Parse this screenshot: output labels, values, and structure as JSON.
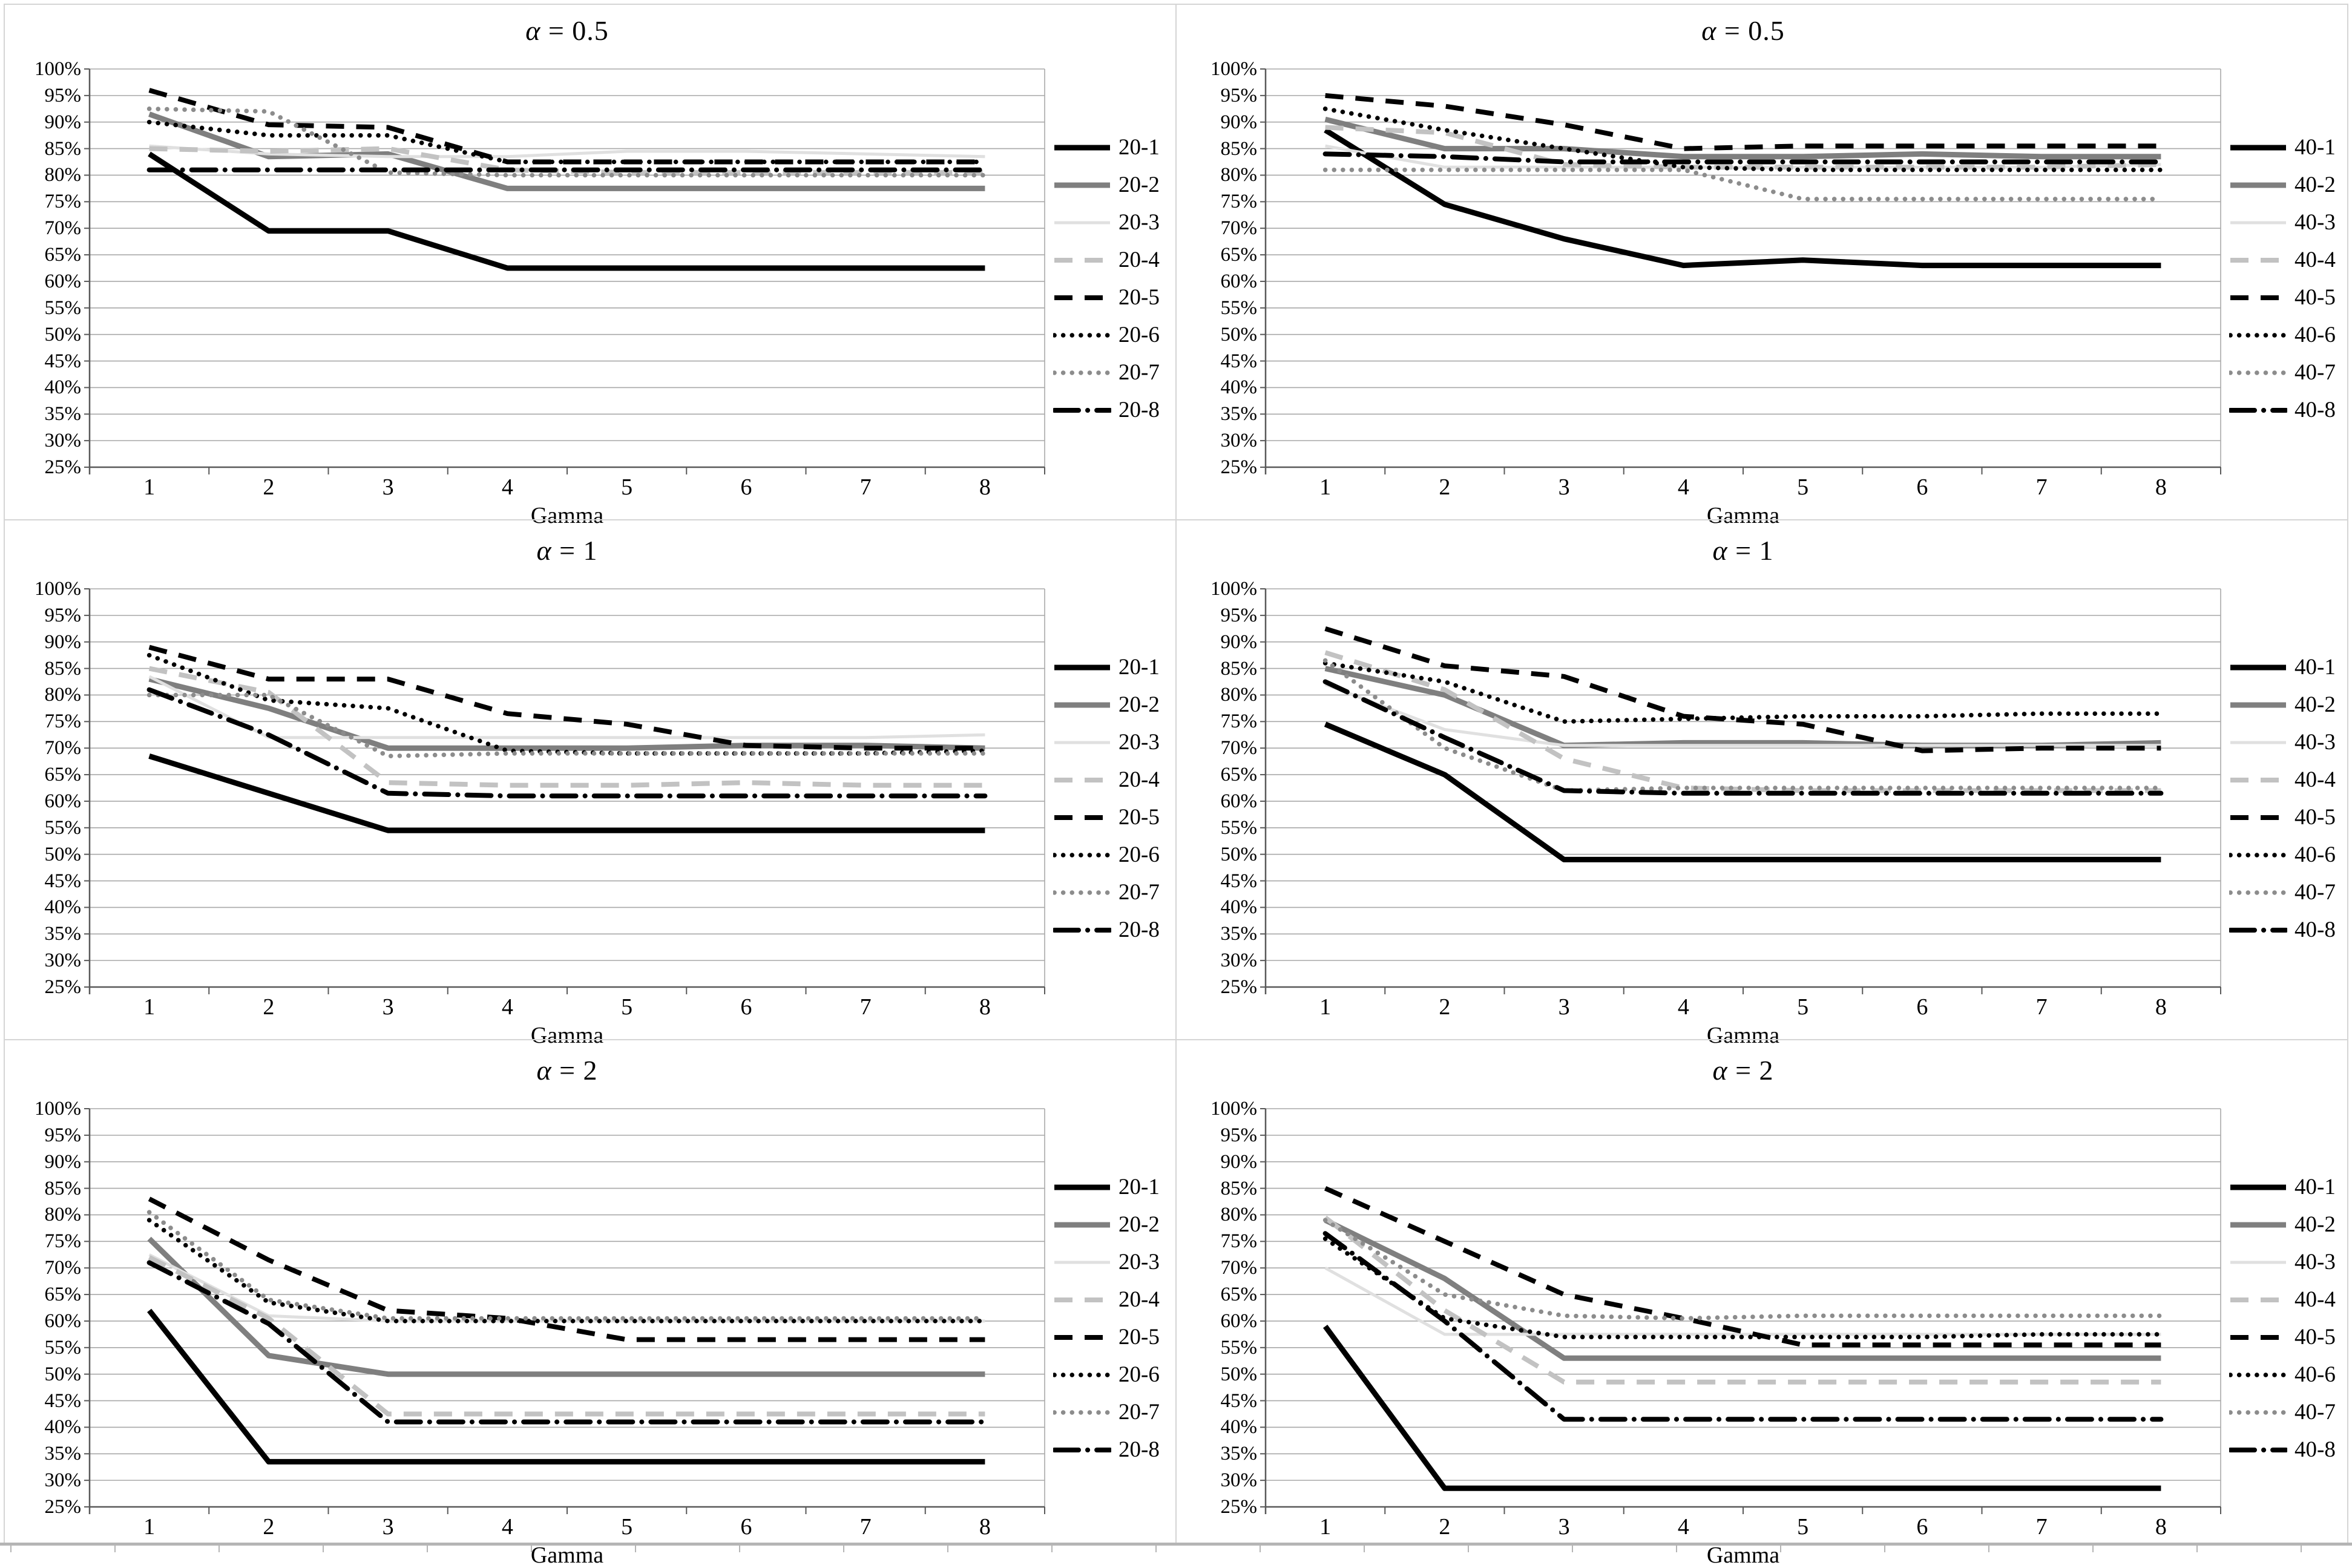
{
  "figure": {
    "x_axis_label": "Gamma",
    "x_tick_labels": [
      "1",
      "2",
      "3",
      "4",
      "5",
      "6",
      "7",
      "8"
    ],
    "y_tick_labels": [
      "100%",
      "95%",
      "90%",
      "85%",
      "80%",
      "75%",
      "70%",
      "65%",
      "60%",
      "55%",
      "50%",
      "45%",
      "40%",
      "35%",
      "30%",
      "25%"
    ],
    "y_min_percent": 25,
    "y_max_percent": 100,
    "y_step_percent": 5,
    "grid": true,
    "legend_position": "right",
    "gridline_color": "#a8a8a8",
    "axis_color": "#595959"
  },
  "line_styles": [
    {
      "suffix": "-1",
      "color": "#000000",
      "pattern": "solid",
      "width": 9
    },
    {
      "suffix": "-2",
      "color": "#7f7f7f",
      "pattern": "solid",
      "width": 9
    },
    {
      "suffix": "-3",
      "color": "#e0e0e0",
      "pattern": "solid",
      "width": 5
    },
    {
      "suffix": "-4",
      "color": "#c2c2c2",
      "pattern": "dash",
      "width": 8
    },
    {
      "suffix": "-5",
      "color": "#000000",
      "pattern": "dash",
      "width": 8
    },
    {
      "suffix": "-6",
      "color": "#000000",
      "pattern": "dot",
      "width": 7.5
    },
    {
      "suffix": "-7",
      "color": "#8c8c8c",
      "pattern": "dot",
      "width": 7.5
    },
    {
      "suffix": "-8",
      "color": "#000000",
      "pattern": "dash-dot",
      "width": 8
    }
  ],
  "chart_data": [
    {
      "type": "line",
      "position": "top-left",
      "title": "α = 0.5",
      "xlabel": "Gamma",
      "x": [
        1,
        2,
        3,
        4,
        5,
        6,
        7,
        8
      ],
      "ylim": [
        25,
        100
      ],
      "grid": true,
      "legend_position": "right",
      "series": [
        {
          "name": "20-1",
          "values": [
            84,
            69.5,
            69.5,
            62.5,
            62.5,
            62.5,
            62.5,
            62.5
          ]
        },
        {
          "name": "20-2",
          "values": [
            91.5,
            83.5,
            84,
            77.5,
            77.5,
            77.5,
            77.5,
            77.5
          ]
        },
        {
          "name": "20-3",
          "values": [
            85.5,
            84,
            83.5,
            83.5,
            84.5,
            84.5,
            84,
            83.5
          ]
        },
        {
          "name": "20-4",
          "values": [
            85,
            84.5,
            85,
            81,
            80.5,
            80.5,
            80.5,
            80.5
          ]
        },
        {
          "name": "20-5",
          "values": [
            96,
            89.5,
            89,
            82.5,
            82.5,
            82.5,
            82.5,
            82.5
          ]
        },
        {
          "name": "20-6",
          "values": [
            90,
            87.5,
            87.5,
            82.5,
            82.5,
            82.5,
            82.5,
            82.5
          ]
        },
        {
          "name": "20-7",
          "values": [
            92.5,
            92,
            80.5,
            80,
            80,
            80,
            80,
            80
          ]
        },
        {
          "name": "20-8",
          "values": [
            81,
            81,
            81,
            81,
            81,
            81,
            81,
            81
          ]
        }
      ]
    },
    {
      "type": "line",
      "position": "top-right",
      "title": "α = 0.5",
      "xlabel": "Gamma",
      "x": [
        1,
        2,
        3,
        4,
        5,
        6,
        7,
        8
      ],
      "ylim": [
        25,
        100
      ],
      "grid": true,
      "legend_position": "right",
      "series": [
        {
          "name": "40-1",
          "values": [
            88.5,
            74.5,
            68,
            63,
            64,
            63,
            63,
            63
          ]
        },
        {
          "name": "40-2",
          "values": [
            90.5,
            85,
            85,
            83.5,
            83.5,
            84,
            83.5,
            83.5
          ]
        },
        {
          "name": "40-3",
          "values": [
            85.5,
            81.5,
            81.5,
            81.5,
            81.5,
            81.5,
            81.5,
            82
          ]
        },
        {
          "name": "40-4",
          "values": [
            89,
            88,
            82,
            81.5,
            81.5,
            81.5,
            81.5,
            82
          ]
        },
        {
          "name": "40-5",
          "values": [
            95,
            93,
            89.5,
            85,
            85.5,
            85.5,
            85.5,
            85.5
          ]
        },
        {
          "name": "40-6",
          "values": [
            92.5,
            88.5,
            85,
            81.5,
            81,
            81,
            81,
            81
          ]
        },
        {
          "name": "40-7",
          "values": [
            81,
            81,
            81,
            81,
            75.5,
            75.5,
            75.5,
            75.5
          ]
        },
        {
          "name": "40-8",
          "values": [
            84,
            83.5,
            82.5,
            82.5,
            82.5,
            82.5,
            82.5,
            82.5
          ]
        }
      ]
    },
    {
      "type": "line",
      "position": "middle-left",
      "title": "α = 1",
      "xlabel": "Gamma",
      "x": [
        1,
        2,
        3,
        4,
        5,
        6,
        7,
        8
      ],
      "ylim": [
        25,
        100
      ],
      "grid": true,
      "legend_position": "right",
      "series": [
        {
          "name": "20-1",
          "values": [
            68.5,
            61.5,
            54.5,
            54.5,
            54.5,
            54.5,
            54.5,
            54.5
          ]
        },
        {
          "name": "20-2",
          "values": [
            83,
            77.5,
            70,
            70,
            70,
            70.5,
            70.5,
            70
          ]
        },
        {
          "name": "20-3",
          "values": [
            83.5,
            72,
            72,
            72,
            72,
            72,
            72,
            72.5
          ]
        },
        {
          "name": "20-4",
          "values": [
            85,
            80.5,
            63.5,
            63,
            63,
            63.5,
            63,
            63
          ]
        },
        {
          "name": "20-5",
          "values": [
            89,
            83,
            83,
            76.5,
            74.5,
            70.5,
            70,
            70
          ]
        },
        {
          "name": "20-6",
          "values": [
            87.5,
            79,
            77.5,
            69.5,
            69,
            69,
            69,
            69.5
          ]
        },
        {
          "name": "20-7",
          "values": [
            80,
            80,
            68.5,
            69,
            69,
            69,
            69,
            69
          ]
        },
        {
          "name": "20-8",
          "values": [
            81,
            72.5,
            61.5,
            61,
            61,
            61,
            61,
            61
          ]
        }
      ]
    },
    {
      "type": "line",
      "position": "middle-right",
      "title": "α = 1",
      "xlabel": "Gamma",
      "x": [
        1,
        2,
        3,
        4,
        5,
        6,
        7,
        8
      ],
      "ylim": [
        25,
        100
      ],
      "grid": true,
      "legend_position": "right",
      "series": [
        {
          "name": "40-1",
          "values": [
            74.5,
            65,
            49,
            49,
            49,
            49,
            49,
            49
          ]
        },
        {
          "name": "40-2",
          "values": [
            85,
            80,
            70.5,
            71,
            71,
            70.5,
            70.5,
            71
          ]
        },
        {
          "name": "40-3",
          "values": [
            82,
            73.5,
            70.5,
            70.5,
            70.5,
            70.5,
            70.5,
            70.5
          ]
        },
        {
          "name": "40-4",
          "values": [
            88,
            81,
            68,
            62.5,
            62,
            62,
            62,
            62
          ]
        },
        {
          "name": "40-5",
          "values": [
            92.5,
            85.5,
            83.5,
            76,
            74.5,
            69.5,
            70,
            70
          ]
        },
        {
          "name": "40-6",
          "values": [
            86,
            82.5,
            75,
            75.5,
            76,
            76,
            76.5,
            76.5
          ]
        },
        {
          "name": "40-7",
          "values": [
            86.5,
            70,
            62,
            62.5,
            62.5,
            62.5,
            62.5,
            62.5
          ]
        },
        {
          "name": "40-8",
          "values": [
            82.5,
            72,
            62,
            61.5,
            61.5,
            61.5,
            61.5,
            61.5
          ]
        }
      ]
    },
    {
      "type": "line",
      "position": "bottom-left",
      "title": "α = 2",
      "xlabel": "Gamma",
      "x": [
        1,
        2,
        3,
        4,
        5,
        6,
        7,
        8
      ],
      "ylim": [
        25,
        100
      ],
      "grid": true,
      "legend_position": "right",
      "series": [
        {
          "name": "20-1",
          "values": [
            62,
            33.5,
            33.5,
            33.5,
            33.5,
            33.5,
            33.5,
            33.5
          ]
        },
        {
          "name": "20-2",
          "values": [
            75.5,
            53.5,
            50,
            50,
            50,
            50,
            50,
            50
          ]
        },
        {
          "name": "20-3",
          "values": [
            72.5,
            61,
            60,
            60,
            60,
            60,
            60,
            60
          ]
        },
        {
          "name": "20-4",
          "values": [
            72,
            60.5,
            42.5,
            42.5,
            42.5,
            42.5,
            42.5,
            42.5
          ]
        },
        {
          "name": "20-5",
          "values": [
            83,
            71.5,
            62,
            60.5,
            56.5,
            56.5,
            56.5,
            56.5
          ]
        },
        {
          "name": "20-6",
          "values": [
            79,
            63.5,
            60,
            60,
            60,
            60,
            60,
            60
          ]
        },
        {
          "name": "20-7",
          "values": [
            80.5,
            64,
            60.5,
            60.5,
            60.5,
            60.5,
            60.5,
            60.5
          ]
        },
        {
          "name": "20-8",
          "values": [
            71,
            59.5,
            41,
            41,
            41,
            41,
            41,
            41
          ]
        }
      ]
    },
    {
      "type": "line",
      "position": "bottom-right",
      "title": "α = 2",
      "xlabel": "Gamma",
      "x": [
        1,
        2,
        3,
        4,
        5,
        6,
        7,
        8
      ],
      "ylim": [
        25,
        100
      ],
      "grid": true,
      "legend_position": "right",
      "series": [
        {
          "name": "40-1",
          "values": [
            59,
            28.5,
            28.5,
            28.5,
            28.5,
            28.5,
            28.5,
            28.5
          ]
        },
        {
          "name": "40-2",
          "values": [
            79,
            68,
            53,
            53,
            53,
            53,
            53,
            53
          ]
        },
        {
          "name": "40-3",
          "values": [
            70,
            57.5,
            57.5,
            57.5,
            57.5,
            57.5,
            57.5,
            57.5
          ]
        },
        {
          "name": "40-4",
          "values": [
            79.5,
            62,
            48.5,
            48.5,
            48.5,
            48.5,
            48.5,
            48.5
          ]
        },
        {
          "name": "40-5",
          "values": [
            85,
            75,
            65,
            60.5,
            55.5,
            55.5,
            55.5,
            55.5
          ]
        },
        {
          "name": "40-6",
          "values": [
            75.5,
            60.5,
            57,
            57,
            57,
            57,
            57.5,
            57.5
          ]
        },
        {
          "name": "40-7",
          "values": [
            79,
            65,
            61,
            60.5,
            61,
            61,
            61,
            61
          ]
        },
        {
          "name": "40-8",
          "values": [
            76.5,
            60,
            41.5,
            41.5,
            41.5,
            41.5,
            41.5,
            41.5
          ]
        }
      ]
    }
  ]
}
